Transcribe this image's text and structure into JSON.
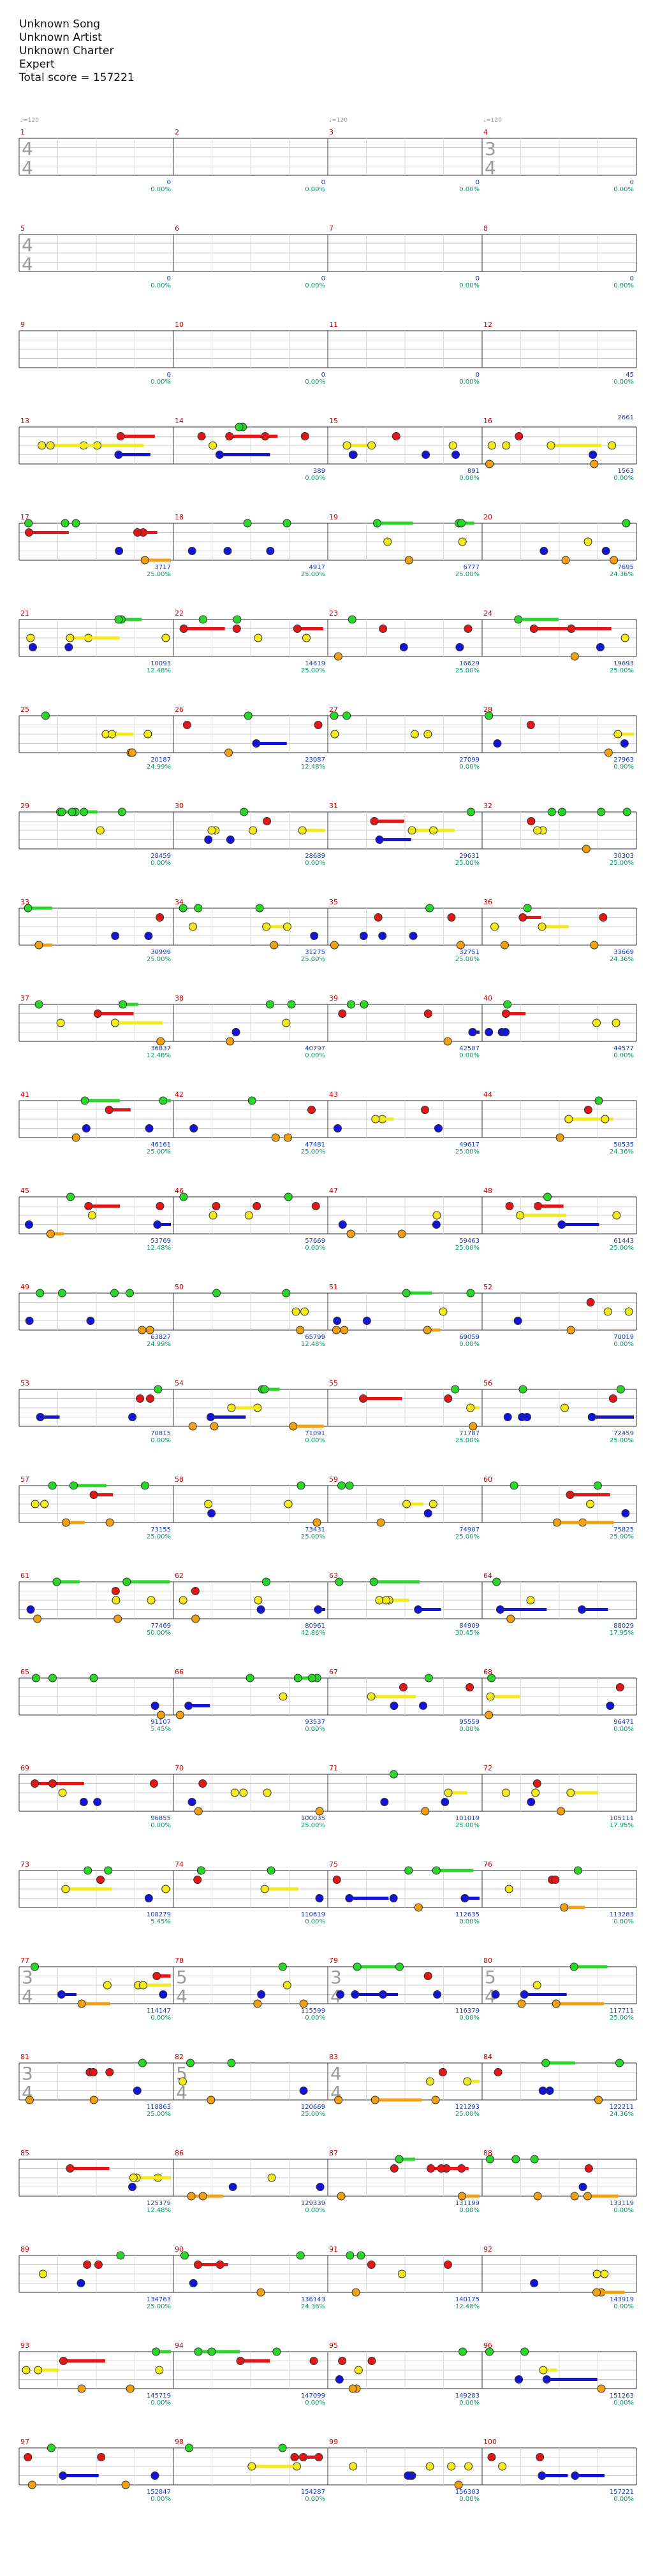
{
  "header": {
    "song": "Unknown Song",
    "artist": "Unknown Artist",
    "charter": "Unknown Charter",
    "difficulty": "Expert",
    "total_score": "Total score = 157221"
  },
  "colors": {
    "green": "#2bd62b",
    "red": "#e01818",
    "yellow": "#f2ea1c",
    "blue": "#1414d6",
    "orange": "#f0a010",
    "measure_number": "#c80000",
    "score": "#1a3ab0",
    "percent": "#009e70",
    "bpm": "#999999",
    "star_power": "#9cf29c",
    "solo": "#8a8ae6"
  },
  "rows": [
    {
      "measures": [
        {
          "number": "1",
          "score": "0",
          "percent": "0.00%",
          "bpm": "120",
          "ts": [
            "4",
            "4"
          ]
        },
        {
          "number": "2",
          "score": "0",
          "percent": "0.00%"
        },
        {
          "number": "3",
          "score": "0",
          "percent": "0.00%",
          "bpm": "120"
        },
        {
          "number": "4",
          "score": "0",
          "percent": "0.00%",
          "bpm": "120",
          "ts": [
            "3",
            "4"
          ]
        }
      ]
    },
    {
      "measures": [
        {
          "number": "5",
          "score": "0",
          "percent": "0.00%",
          "ts": [
            "4",
            "4"
          ]
        },
        {
          "number": "6",
          "score": "0",
          "percent": "0.00%"
        },
        {
          "number": "7",
          "score": "0",
          "percent": "0.00%"
        },
        {
          "number": "8",
          "score": "0",
          "percent": "0.00%"
        }
      ]
    },
    {
      "measures": [
        {
          "number": "9",
          "score": "0",
          "percent": "0.00%"
        },
        {
          "number": "10",
          "score": "0",
          "percent": "0.00%"
        },
        {
          "number": "11",
          "score": "0",
          "percent": "0.00%"
        },
        {
          "number": "12",
          "score": "45",
          "percent": "0.00%"
        }
      ]
    },
    {
      "measures": [
        {
          "number": "13",
          "score": "",
          "percent": ""
        },
        {
          "number": "14",
          "score": "389",
          "percent": "0.00%"
        },
        {
          "number": "15",
          "score": "891",
          "percent": "0.00%"
        },
        {
          "number": "16",
          "score": "1563",
          "percent": "0.00%"
        }
      ],
      "last_score": "2661",
      "last_percent": "0.00%"
    },
    {
      "measures": [
        {
          "number": "17",
          "score": "3717",
          "percent": "25.00%"
        },
        {
          "number": "18",
          "score": "4917",
          "percent": "25.00%"
        },
        {
          "number": "19",
          "score": "6777",
          "percent": "25.00%"
        },
        {
          "number": "20",
          "score": "7695",
          "percent": "24.36%"
        }
      ]
    },
    {
      "measures": [
        {
          "number": "21",
          "score": "10093",
          "percent": "12.48%"
        },
        {
          "number": "22",
          "score": "14619",
          "percent": "25.00%"
        },
        {
          "number": "23",
          "score": "16629",
          "percent": "25.00%"
        },
        {
          "number": "24",
          "score": "19693",
          "percent": "25.00%"
        }
      ]
    },
    {
      "measures": [
        {
          "number": "25",
          "score": "20187",
          "percent": "24.99%"
        },
        {
          "number": "26",
          "score": "23087",
          "percent": "12.48%"
        },
        {
          "number": "27",
          "score": "27099",
          "percent": "0.00%"
        },
        {
          "number": "28",
          "score": "27963",
          "percent": "0.00%"
        }
      ]
    },
    {
      "measures": [
        {
          "number": "29",
          "score": "28459",
          "percent": "0.00%"
        },
        {
          "number": "30",
          "score": "28689",
          "percent": "0.00%"
        },
        {
          "number": "31",
          "score": "29631",
          "percent": "25.00%"
        },
        {
          "number": "32",
          "score": "30303",
          "percent": "25.00%"
        }
      ]
    },
    {
      "measures": [
        {
          "number": "33",
          "score": "30999",
          "percent": "25.00%"
        },
        {
          "number": "34",
          "score": "31275",
          "percent": "25.00%"
        },
        {
          "number": "35",
          "score": "32751",
          "percent": "25.00%"
        },
        {
          "number": "36",
          "score": "33669",
          "percent": "24.36%"
        }
      ]
    },
    {
      "measures": [
        {
          "number": "37",
          "score": "36837",
          "percent": "12.48%"
        },
        {
          "number": "38",
          "score": "40797",
          "percent": "0.00%"
        },
        {
          "number": "39",
          "score": "42507",
          "percent": "0.00%"
        },
        {
          "number": "40",
          "score": "44577",
          "percent": "0.00%"
        }
      ]
    },
    {
      "measures": [
        {
          "number": "41",
          "score": "46161",
          "percent": "25.00%"
        },
        {
          "number": "42",
          "score": "47481",
          "percent": "25.00%"
        },
        {
          "number": "43",
          "score": "49617",
          "percent": "25.00%"
        },
        {
          "number": "44",
          "score": "50535",
          "percent": "24.36%"
        }
      ]
    },
    {
      "measures": [
        {
          "number": "45",
          "score": "53769",
          "percent": "12.48%"
        },
        {
          "number": "46",
          "score": "57669",
          "percent": "0.00%"
        },
        {
          "number": "47",
          "score": "59463",
          "percent": "25.00%"
        },
        {
          "number": "48",
          "score": "61443",
          "percent": "25.00%"
        }
      ]
    },
    {
      "measures": [
        {
          "number": "49",
          "score": "63827",
          "percent": "24.99%"
        },
        {
          "number": "50",
          "score": "65799",
          "percent": "12.48%"
        },
        {
          "number": "51",
          "score": "69059",
          "percent": "0.00%"
        },
        {
          "number": "52",
          "score": "70019",
          "percent": "0.00%"
        }
      ]
    },
    {
      "measures": [
        {
          "number": "53",
          "score": "70815",
          "percent": "0.00%"
        },
        {
          "number": "54",
          "score": "71091",
          "percent": "0.00%"
        },
        {
          "number": "55",
          "score": "71787",
          "percent": "25.00%"
        },
        {
          "number": "56",
          "score": "72459",
          "percent": "25.00%"
        }
      ]
    },
    {
      "measures": [
        {
          "number": "57",
          "score": "73155",
          "percent": "25.00%"
        },
        {
          "number": "58",
          "score": "73431",
          "percent": "25.00%"
        },
        {
          "number": "59",
          "score": "74907",
          "percent": "25.00%"
        },
        {
          "number": "60",
          "score": "75825",
          "percent": "25.00%"
        }
      ]
    },
    {
      "measures": [
        {
          "number": "61",
          "score": "77469",
          "percent": "50.00%"
        },
        {
          "number": "62",
          "score": "80961",
          "percent": "42.86%"
        },
        {
          "number": "63",
          "score": "84909",
          "percent": "30.45%"
        },
        {
          "number": "64",
          "score": "88029",
          "percent": "17.95%"
        }
      ]
    },
    {
      "measures": [
        {
          "number": "65",
          "score": "91107",
          "percent": "5.45%"
        },
        {
          "number": "66",
          "score": "93537",
          "percent": "0.00%"
        },
        {
          "number": "67",
          "score": "95559",
          "percent": "0.00%"
        },
        {
          "number": "68",
          "score": "96471",
          "percent": "0.00%"
        }
      ]
    },
    {
      "measures": [
        {
          "number": "69",
          "score": "96855",
          "percent": "0.00%"
        },
        {
          "number": "70",
          "score": "100035",
          "percent": "25.00%"
        },
        {
          "number": "71",
          "score": "101019",
          "percent": "25.00%"
        },
        {
          "number": "72",
          "score": "105111",
          "percent": "17.95%"
        }
      ]
    },
    {
      "measures": [
        {
          "number": "73",
          "score": "108279",
          "percent": "5.45%"
        },
        {
          "number": "74",
          "score": "110619",
          "percent": "0.00%"
        },
        {
          "number": "75",
          "score": "112635",
          "percent": "0.00%"
        },
        {
          "number": "76",
          "score": "113283",
          "percent": "0.00%"
        }
      ]
    },
    {
      "measures": [
        {
          "number": "77",
          "score": "114147",
          "percent": "0.00%",
          "ts": [
            "3",
            "4"
          ]
        },
        {
          "number": "78",
          "score": "115599",
          "percent": "0.00%",
          "ts": [
            "5",
            "4"
          ]
        },
        {
          "number": "79",
          "score": "116379",
          "percent": "0.00%",
          "ts": [
            "3",
            "4"
          ]
        },
        {
          "number": "80",
          "score": "117711",
          "percent": "25.00%",
          "ts": [
            "5",
            "4"
          ]
        }
      ]
    },
    {
      "measures": [
        {
          "number": "81",
          "score": "118863",
          "percent": "25.00%",
          "ts": [
            "3",
            "4"
          ]
        },
        {
          "number": "82",
          "score": "120669",
          "percent": "25.00%",
          "ts": [
            "5",
            "4"
          ]
        },
        {
          "number": "83",
          "score": "121293",
          "percent": "25.00%",
          "ts": [
            "4",
            "4"
          ]
        },
        {
          "number": "84",
          "score": "122211",
          "percent": "24.36%"
        }
      ]
    },
    {
      "measures": [
        {
          "number": "85",
          "score": "125379",
          "percent": "12.48%"
        },
        {
          "number": "86",
          "score": "129339",
          "percent": "0.00%"
        },
        {
          "number": "87",
          "score": "131199",
          "percent": "0.00%"
        },
        {
          "number": "88",
          "score": "133119",
          "percent": "0.00%"
        }
      ]
    },
    {
      "measures": [
        {
          "number": "89",
          "score": "134763",
          "percent": "25.00%"
        },
        {
          "number": "90",
          "score": "136143",
          "percent": "24.36%"
        },
        {
          "number": "91",
          "score": "140175",
          "percent": "12.48%"
        },
        {
          "number": "92",
          "score": "143919",
          "percent": "0.00%"
        }
      ]
    },
    {
      "measures": [
        {
          "number": "93",
          "score": "145719",
          "percent": "0.00%"
        },
        {
          "number": "94",
          "score": "147099",
          "percent": "0.00%"
        },
        {
          "number": "95",
          "score": "149283",
          "percent": "0.00%"
        },
        {
          "number": "96",
          "score": "151263",
          "percent": "0.00%"
        }
      ]
    },
    {
      "measures": [
        {
          "number": "97",
          "score": "152847",
          "percent": "0.00%"
        },
        {
          "number": "98",
          "score": "154287",
          "percent": "0.00%"
        },
        {
          "number": "99",
          "score": "156303",
          "percent": "0.00%"
        },
        {
          "number": "100",
          "score": "157221",
          "percent": "0.00%"
        }
      ]
    }
  ]
}
